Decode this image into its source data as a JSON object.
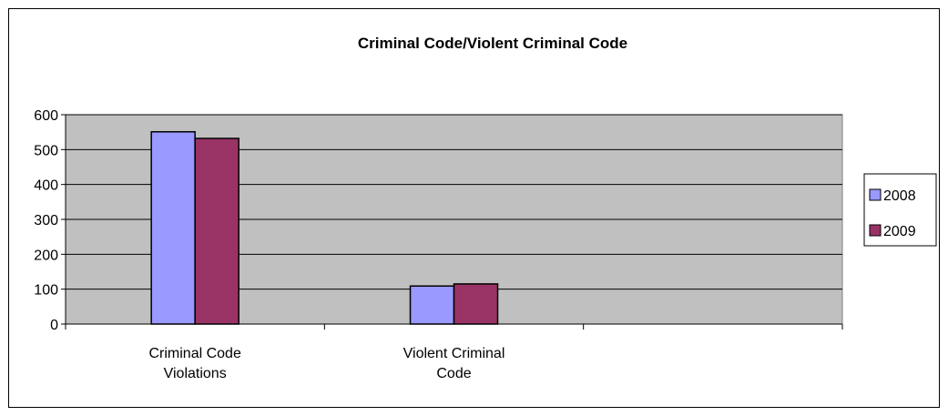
{
  "chart_data": {
    "type": "bar",
    "title": "Criminal Code/Violent Criminal Code",
    "xlabel": "",
    "ylabel": "",
    "categories": [
      [
        "Criminal Code",
        "Violations"
      ],
      [
        "Violent Criminal",
        "Code"
      ],
      [
        ""
      ]
    ],
    "series": [
      {
        "name": "2008",
        "color": "#9999ff",
        "values": [
          551,
          109,
          null
        ]
      },
      {
        "name": "2009",
        "color": "#993366",
        "values": [
          532,
          115,
          null
        ]
      }
    ],
    "ylim": [
      0,
      600
    ],
    "yticks": [
      0,
      100,
      200,
      300,
      400,
      500,
      600
    ],
    "grid": true,
    "plot_background": "#c0c0c0",
    "legend_position": "right"
  }
}
